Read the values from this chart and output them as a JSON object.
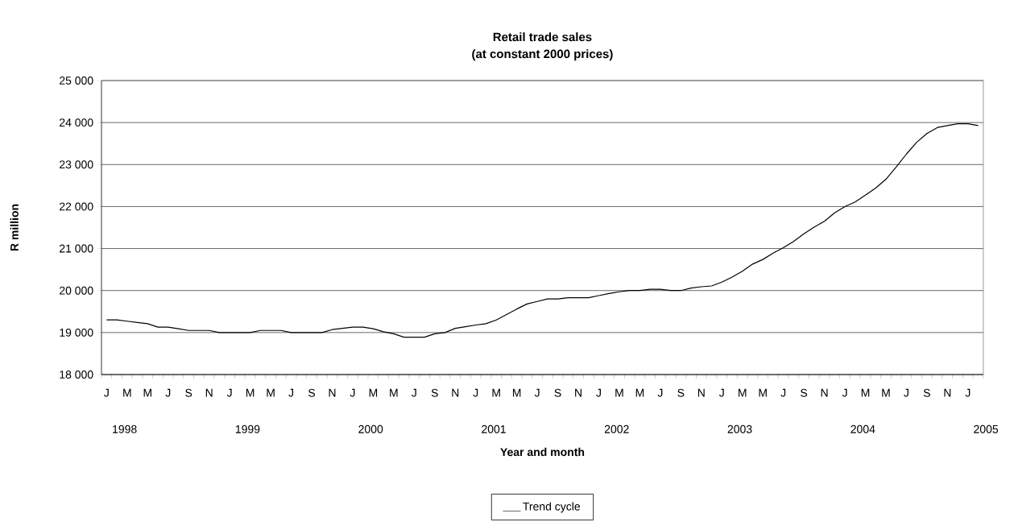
{
  "chart_data": {
    "type": "line",
    "title": "Retail trade sales",
    "subtitle": "(at constant 2000 prices)",
    "xlabel": "Year and month",
    "ylabel": "R million",
    "categories": [
      "J",
      null,
      "M",
      null,
      "M",
      null,
      "J",
      null,
      "S",
      null,
      "N",
      null,
      "J",
      null,
      "M",
      null,
      "M",
      null,
      "J",
      null,
      "S",
      null,
      "N",
      null,
      "J",
      null,
      "M",
      null,
      "M",
      null,
      "J",
      null,
      "S",
      null,
      "N",
      null,
      "J",
      null,
      "M",
      null,
      "M",
      null,
      "J",
      null,
      "S",
      null,
      "N",
      null,
      "J",
      null,
      "M",
      null,
      "M",
      null,
      "J",
      null,
      "S",
      null,
      "N",
      null,
      "J",
      null,
      "M",
      null,
      "M",
      null,
      "J",
      null,
      "S",
      null,
      "N",
      null,
      "J",
      null,
      "M",
      null,
      "M",
      null,
      "J",
      null,
      "S",
      null,
      "N",
      null,
      "J",
      null
    ],
    "series": [
      {
        "name": "Trend cycle",
        "color": "#000000",
        "values": [
          19300,
          19300,
          19270,
          19240,
          19210,
          19130,
          19130,
          19090,
          19050,
          19050,
          19050,
          19000,
          19000,
          19000,
          19000,
          19050,
          19050,
          19050,
          19000,
          19000,
          19000,
          19000,
          19070,
          19100,
          19130,
          19130,
          19090,
          19020,
          18970,
          18890,
          18890,
          18890,
          18970,
          19000,
          19100,
          19140,
          19180,
          19210,
          19300,
          19430,
          19560,
          19680,
          19740,
          19800,
          19800,
          19830,
          19830,
          19830,
          19880,
          19930,
          19970,
          20000,
          20000,
          20030,
          20030,
          20000,
          20000,
          20060,
          20090,
          20110,
          20200,
          20320,
          20460,
          20630,
          20740,
          20890,
          21020,
          21170,
          21350,
          21510,
          21650,
          21850,
          22000,
          22110,
          22270,
          22440,
          22650,
          22940,
          23250,
          23530,
          23740,
          23880,
          23930,
          23970,
          23970,
          23930
        ]
      }
    ],
    "ylim": [
      18000,
      25000
    ],
    "yticks": [
      {
        "value": 18000,
        "label": "18 000"
      },
      {
        "value": 19000,
        "label": "19 000"
      },
      {
        "value": 20000,
        "label": "20 000"
      },
      {
        "value": 21000,
        "label": "21 000"
      },
      {
        "value": 22000,
        "label": "22 000"
      },
      {
        "value": 23000,
        "label": "23 000"
      },
      {
        "value": 24000,
        "label": "24 000"
      },
      {
        "value": 25000,
        "label": "25 000"
      }
    ],
    "grid": "y",
    "legend": "bottom",
    "annotations": [
      "1998",
      "1999",
      "2000",
      "2001",
      "2002",
      "2003",
      "2004",
      "2005"
    ]
  }
}
